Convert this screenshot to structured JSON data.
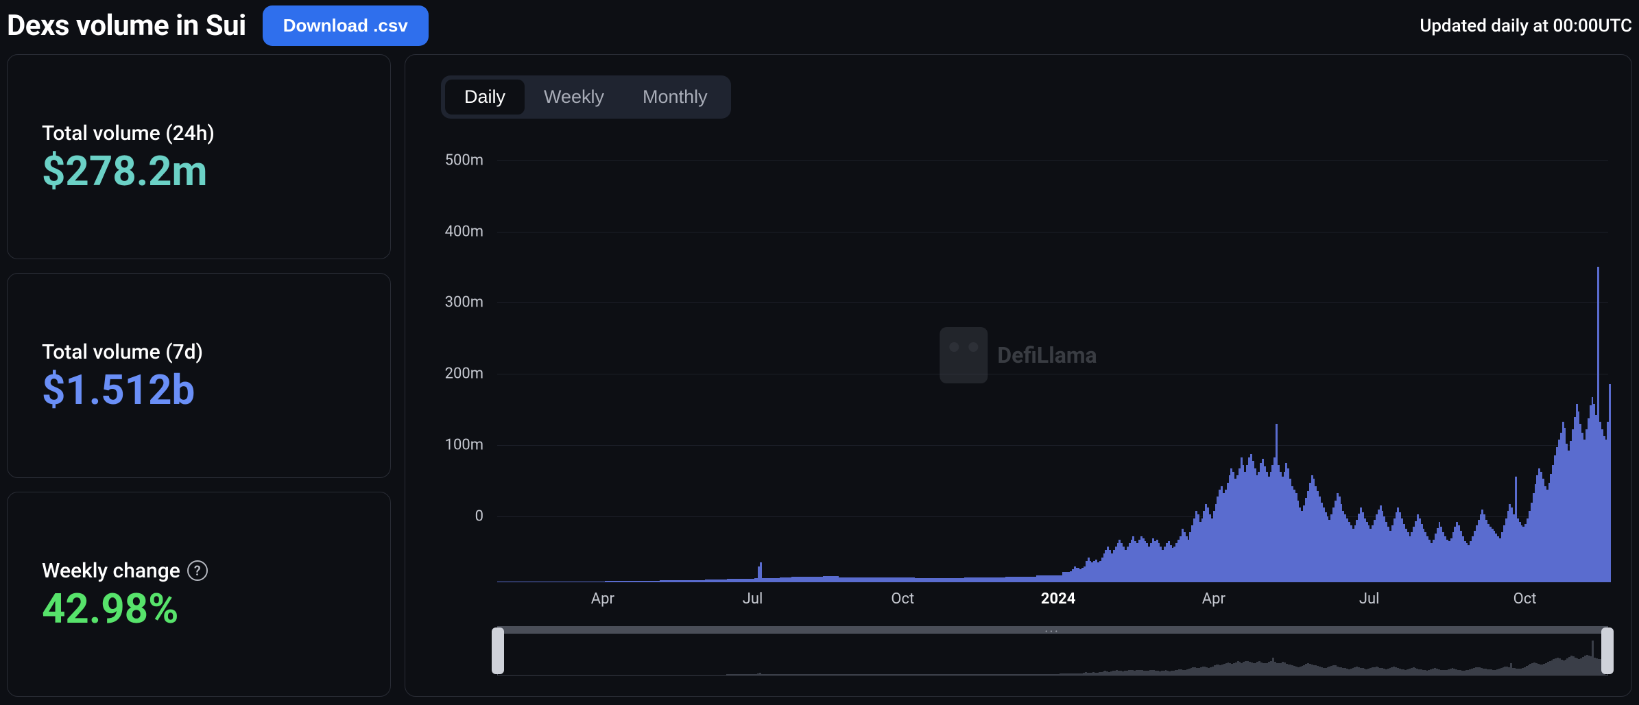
{
  "header": {
    "title": "Dexs volume in Sui",
    "download_label": "Download .csv",
    "updated_text": "Updated daily at 00:00UTC"
  },
  "cards": [
    {
      "label": "Total volume (24h)",
      "value": "$278.2m",
      "value_color": "#6bd1c6",
      "help": false
    },
    {
      "label": "Total volume (7d)",
      "value": "$1.512b",
      "value_color": "#6a8ff7",
      "help": false
    },
    {
      "label": "Weekly change",
      "value": "42.98%",
      "value_color": "#57e36b",
      "help": true
    }
  ],
  "tabs": {
    "items": [
      "Daily",
      "Weekly",
      "Monthly"
    ],
    "active_index": 0
  },
  "chart": {
    "type": "bar",
    "bar_color": "#5a6ccf",
    "background_color": "#0d0f14",
    "grid_color": "#1c1f28",
    "y_axis": {
      "ticks": [
        0,
        100,
        200,
        300,
        400,
        500
      ],
      "tick_labels": [
        "0",
        "100m",
        "200m",
        "300m",
        "400m",
        "500m"
      ],
      "max": 520
    },
    "x_axis": {
      "ticks": [
        {
          "pos": 0.095,
          "label": "Apr",
          "bold": false
        },
        {
          "pos": 0.23,
          "label": "Jul",
          "bold": false
        },
        {
          "pos": 0.365,
          "label": "Oct",
          "bold": false
        },
        {
          "pos": 0.505,
          "label": "2024",
          "bold": true
        },
        {
          "pos": 0.645,
          "label": "Apr",
          "bold": false
        },
        {
          "pos": 0.785,
          "label": "Jul",
          "bold": false
        },
        {
          "pos": 0.925,
          "label": "Oct",
          "bold": false
        }
      ]
    },
    "watermark": "DefiLlama",
    "data": [
      1,
      1,
      1,
      1,
      1,
      1,
      1,
      1,
      1,
      1,
      1,
      1,
      1,
      1,
      1,
      1,
      1,
      1,
      1,
      1,
      1,
      1,
      1,
      1,
      1,
      1,
      1,
      1,
      1,
      1,
      1,
      1,
      1,
      1,
      1,
      1,
      1,
      1,
      1,
      1,
      1,
      1,
      1,
      1,
      1,
      1,
      1,
      1,
      1,
      1,
      1,
      1,
      1,
      1,
      1,
      2,
      2,
      2,
      2,
      2,
      2,
      2,
      2,
      2,
      2,
      2,
      2,
      2,
      2,
      2,
      2,
      2,
      2,
      2,
      2,
      2,
      2,
      2,
      2,
      2,
      2,
      2,
      2,
      3,
      3,
      3,
      3,
      3,
      3,
      3,
      3,
      3,
      3,
      3,
      3,
      3,
      3,
      3,
      3,
      3,
      3,
      3,
      3,
      3,
      3,
      3,
      4,
      4,
      4,
      4,
      4,
      4,
      4,
      4,
      4,
      4,
      4,
      5,
      5,
      5,
      5,
      5,
      5,
      5,
      5,
      5,
      5,
      5,
      5,
      5,
      5,
      6,
      6,
      22,
      28,
      6,
      6,
      6,
      6,
      6,
      6,
      6,
      6,
      6,
      7,
      7,
      7,
      7,
      7,
      7,
      8,
      8,
      8,
      8,
      8,
      8,
      8,
      8,
      8,
      8,
      8,
      8,
      8,
      8,
      8,
      8,
      9,
      9,
      9,
      9,
      9,
      9,
      9,
      9,
      7,
      7,
      7,
      7,
      7,
      7,
      7,
      7,
      7,
      7,
      7,
      7,
      7,
      7,
      7,
      7,
      7,
      7,
      7,
      7,
      7,
      7,
      7,
      7,
      7,
      7,
      7,
      7,
      7,
      7,
      7,
      7,
      7,
      7,
      7,
      7,
      7,
      7,
      7,
      6,
      6,
      6,
      6,
      6,
      6,
      6,
      6,
      6,
      6,
      6,
      6,
      6,
      6,
      6,
      6,
      6,
      6,
      6,
      6,
      6,
      6,
      6,
      6,
      6,
      7,
      7,
      7,
      7,
      7,
      7,
      7,
      7,
      7,
      7,
      7,
      7,
      7,
      7,
      7,
      7,
      7,
      7,
      7,
      7,
      7,
      8,
      8,
      8,
      8,
      8,
      8,
      8,
      8,
      8,
      8,
      8,
      8,
      8,
      8,
      8,
      8,
      10,
      10,
      10,
      10,
      10,
      10,
      10,
      10,
      10,
      10,
      10,
      10,
      10,
      14,
      14,
      14,
      14,
      15,
      18,
      22,
      20,
      20,
      18,
      20,
      22,
      30,
      35,
      30,
      28,
      30,
      32,
      28,
      30,
      35,
      40,
      45,
      50,
      45,
      40,
      45,
      50,
      55,
      60,
      55,
      50,
      45,
      50,
      55,
      60,
      65,
      58,
      55,
      60,
      65,
      62,
      58,
      55,
      50,
      55,
      62,
      58,
      60,
      55,
      50,
      45,
      50,
      55,
      58,
      52,
      48,
      50,
      55,
      60,
      65,
      75,
      70,
      65,
      60,
      70,
      80,
      90,
      100,
      95,
      85,
      90,
      100,
      110,
      105,
      95,
      90,
      100,
      110,
      120,
      130,
      135,
      125,
      130,
      140,
      150,
      160,
      155,
      145,
      150,
      160,
      175,
      165,
      155,
      165,
      175,
      180,
      170,
      160,
      150,
      155,
      168,
      173,
      163,
      155,
      148,
      155,
      165,
      175,
      222,
      165,
      155,
      148,
      155,
      168,
      160,
      145,
      135,
      130,
      125,
      115,
      105,
      100,
      108,
      118,
      128,
      140,
      150,
      145,
      135,
      128,
      120,
      112,
      105,
      98,
      92,
      88,
      95,
      105,
      115,
      125,
      120,
      110,
      100,
      95,
      90,
      85,
      80,
      75,
      80,
      88,
      96,
      105,
      98,
      90,
      85,
      80,
      75,
      80,
      88,
      95,
      102,
      108,
      100,
      92,
      85,
      78,
      72,
      80,
      90,
      98,
      105,
      98,
      90,
      82,
      75,
      70,
      65,
      70,
      78,
      86,
      95,
      90,
      82,
      75,
      70,
      65,
      60,
      55,
      60,
      68,
      76,
      85,
      78,
      70,
      65,
      60,
      58,
      62,
      70,
      78,
      85,
      80,
      72,
      65,
      58,
      55,
      52,
      58,
      65,
      72,
      80,
      88,
      95,
      102,
      95,
      88,
      82,
      78,
      75,
      72,
      68,
      65,
      62,
      70,
      80,
      90,
      100,
      110,
      105,
      95,
      148,
      90,
      85,
      80,
      78,
      82,
      90,
      100,
      112,
      125,
      138,
      150,
      160,
      155,
      145,
      135,
      130,
      140,
      152,
      165,
      178,
      190,
      200,
      210,
      225,
      217,
      195,
      185,
      198,
      215,
      232,
      250,
      240,
      222,
      210,
      200,
      215,
      230,
      248,
      260,
      250,
      235,
      443,
      225,
      215,
      205,
      200,
      225,
      278
    ],
    "data_unit": "m",
    "brush": {
      "range": [
        0,
        1
      ]
    }
  }
}
